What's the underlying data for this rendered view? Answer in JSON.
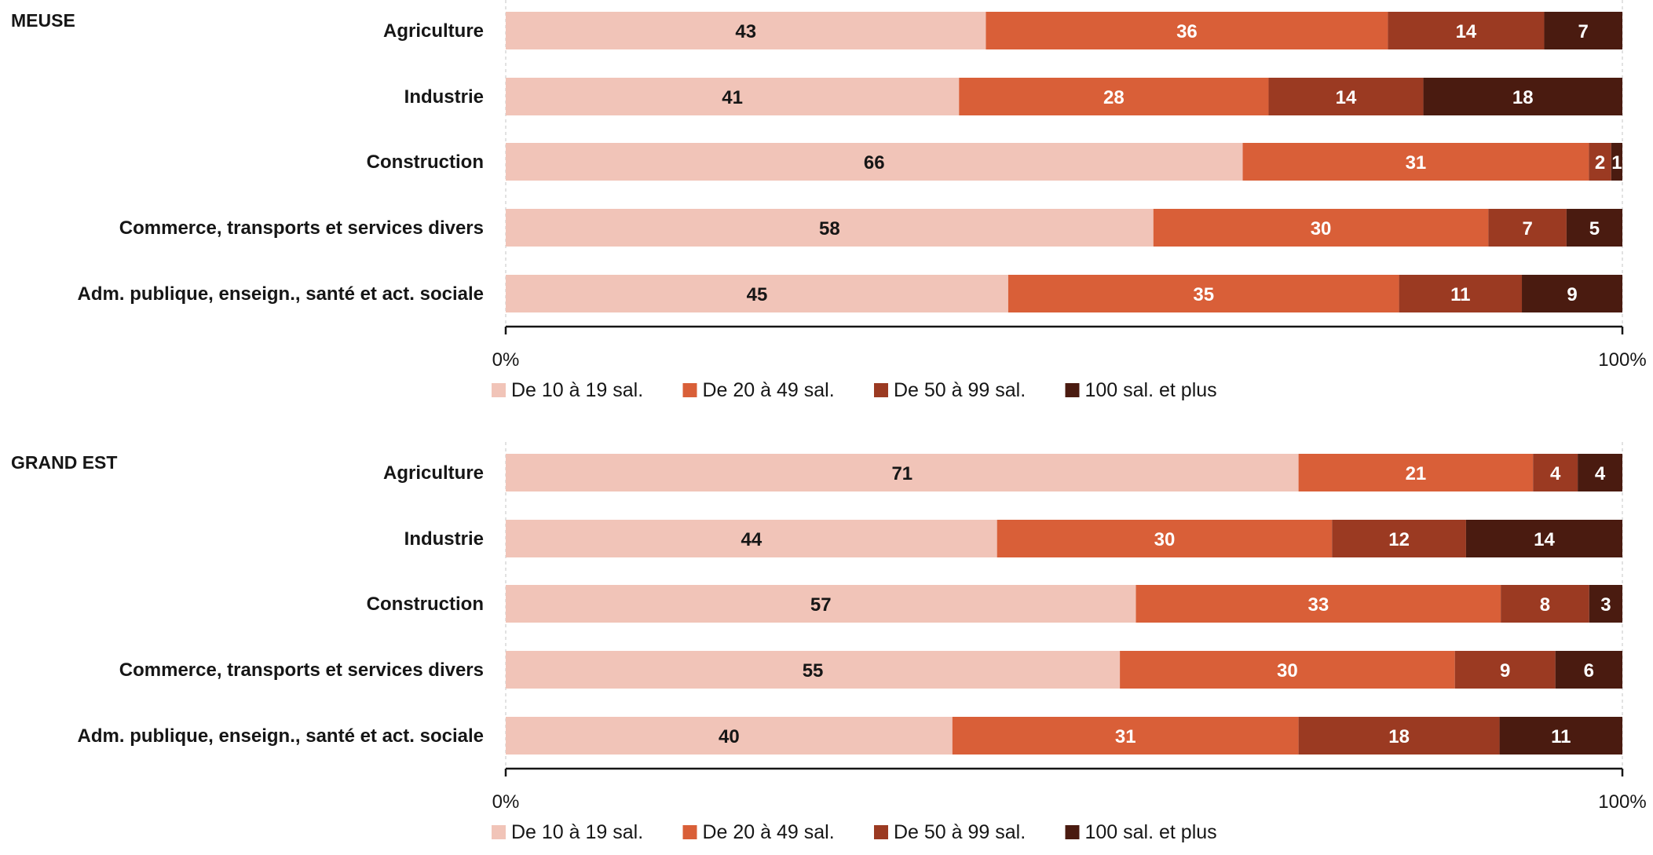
{
  "chart_data": [
    {
      "type": "bar",
      "orientation": "horizontal",
      "stacked": "percent",
      "title": "MEUSE",
      "categories": [
        "Agriculture",
        "Industrie",
        "Construction",
        "Commerce, transports et services divers",
        "Adm. publique, enseign., santé et act. sociale"
      ],
      "series": [
        {
          "name": "De 10 à 19 sal.",
          "color": "#f1c4b8",
          "values": [
            43,
            41,
            66,
            58,
            45
          ]
        },
        {
          "name": "De 20 à 49 sal.",
          "color": "#d95f38",
          "values": [
            36,
            28,
            31,
            30,
            35
          ]
        },
        {
          "name": "De 50 à 99 sal.",
          "color": "#9b3a22",
          "values": [
            14,
            14,
            2,
            7,
            11
          ]
        },
        {
          "name": "100 sal. et plus",
          "color": "#4a1b10",
          "values": [
            7,
            18,
            1,
            5,
            9
          ]
        }
      ],
      "xlim": [
        0,
        100
      ],
      "x_tick_labels": [
        "0%",
        "100%"
      ],
      "legend_position": "bottom"
    },
    {
      "type": "bar",
      "orientation": "horizontal",
      "stacked": "percent",
      "title": "GRAND EST",
      "categories": [
        "Agriculture",
        "Industrie",
        "Construction",
        "Commerce, transports et services divers",
        "Adm. publique, enseign., santé et act. sociale"
      ],
      "series": [
        {
          "name": "De 10 à 19 sal.",
          "color": "#f1c4b8",
          "values": [
            71,
            44,
            57,
            55,
            40
          ]
        },
        {
          "name": "De 20 à 49 sal.",
          "color": "#d95f38",
          "values": [
            21,
            30,
            33,
            30,
            31
          ]
        },
        {
          "name": "De 50 à 99 sal.",
          "color": "#9b3a22",
          "values": [
            4,
            12,
            8,
            9,
            18
          ]
        },
        {
          "name": "100 sal. et plus",
          "color": "#4a1b10",
          "values": [
            4,
            14,
            3,
            6,
            11
          ]
        }
      ],
      "xlim": [
        0,
        100
      ],
      "x_tick_labels": [
        "0%",
        "100%"
      ],
      "legend_position": "bottom"
    }
  ]
}
